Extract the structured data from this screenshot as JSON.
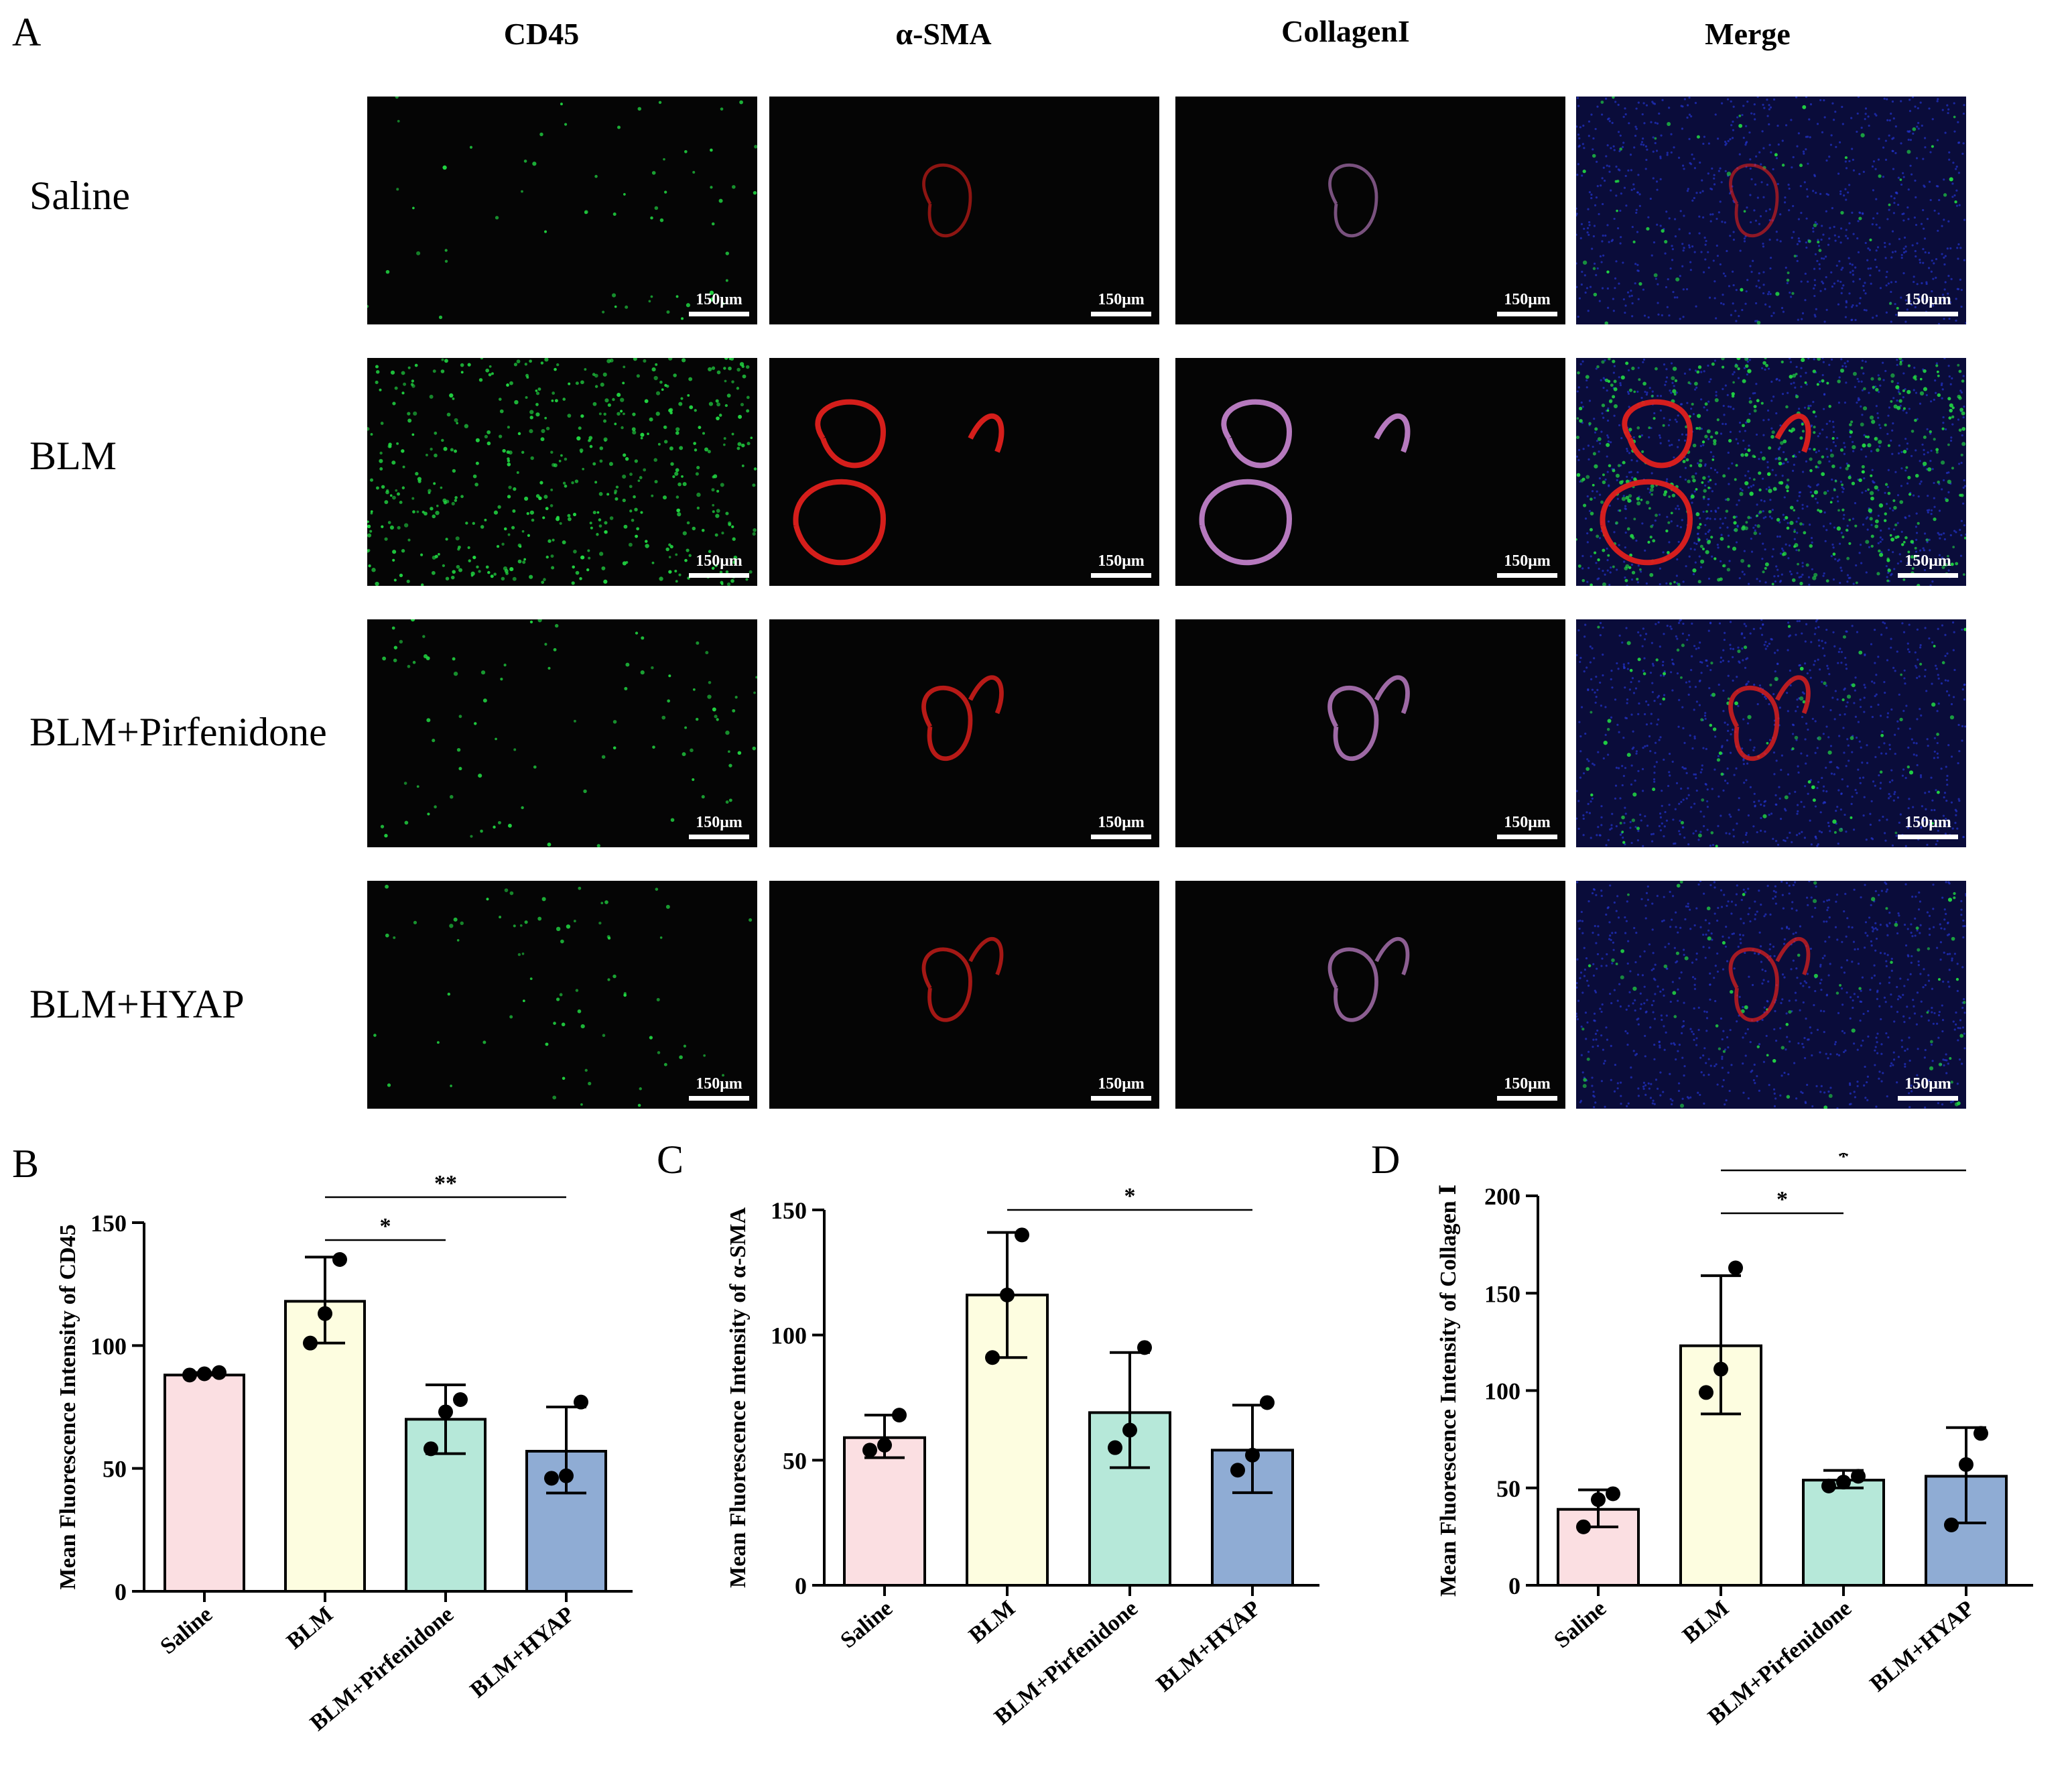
{
  "panel_a": {
    "letter": "A",
    "columns": [
      "CD45",
      "α-SMA",
      "CollagenI",
      "Merge"
    ],
    "rows": [
      "Saline",
      "BLM",
      "BLM+Pirfenidone",
      "BLM+HYAP"
    ],
    "scale_bar_label": "150μm"
  },
  "chart_data": [
    {
      "letter": "B",
      "type": "bar",
      "ylabel": "Mean Fluorescence Intensity of CD45",
      "categories": [
        "Saline",
        "BLM",
        "BLM+Pirfenidone",
        "BLM+HYAP"
      ],
      "values": [
        88,
        118,
        70,
        57
      ],
      "error": [
        [
          88,
          89
        ],
        [
          101,
          136
        ],
        [
          56,
          84
        ],
        [
          40,
          75
        ]
      ],
      "points": [
        [
          88,
          88.5,
          89
        ],
        [
          101,
          113,
          135
        ],
        [
          58,
          73,
          78
        ],
        [
          46,
          47,
          77
        ]
      ],
      "ylim": [
        0,
        150
      ],
      "yticks": [
        0,
        50,
        100,
        150
      ],
      "colors": [
        "#fbdfe2",
        "#fdfde0",
        "#b6e8d9",
        "#8facd4"
      ],
      "significance": [
        {
          "from": "BLM",
          "to": "BLM+Pirfenidone",
          "label": "*"
        },
        {
          "from": "BLM",
          "to": "BLM+HYAP",
          "label": "**"
        }
      ]
    },
    {
      "letter": "C",
      "type": "bar",
      "ylabel": "Mean Fluorescence Intensity of α-SMA",
      "categories": [
        "Saline",
        "BLM",
        "BLM+Pirfenidone",
        "BLM+HYAP"
      ],
      "values": [
        59,
        116,
        69,
        54
      ],
      "error": [
        [
          51,
          68
        ],
        [
          91,
          141
        ],
        [
          47,
          93
        ],
        [
          37,
          72
        ]
      ],
      "points": [
        [
          54,
          56,
          68
        ],
        [
          91,
          116,
          140
        ],
        [
          55,
          62,
          95
        ],
        [
          46,
          52,
          73
        ]
      ],
      "ylim": [
        0,
        150
      ],
      "yticks": [
        0,
        50,
        100,
        150
      ],
      "colors": [
        "#fbdfe2",
        "#fdfde0",
        "#b6e8d9",
        "#8facd4"
      ],
      "significance": [
        {
          "from": "BLM",
          "to": "BLM+HYAP",
          "label": "*"
        }
      ]
    },
    {
      "letter": "D",
      "type": "bar",
      "ylabel": "Mean Fluorescence Intensity of Collagen Ⅰ",
      "categories": [
        "Saline",
        "BLM",
        "BLM+Pirfenidone",
        "BLM+HYAP"
      ],
      "values": [
        39,
        123,
        54,
        56
      ],
      "error": [
        [
          30,
          49
        ],
        [
          88,
          159
        ],
        [
          50,
          59
        ],
        [
          32,
          81
        ]
      ],
      "points": [
        [
          30,
          44,
          47
        ],
        [
          99,
          111,
          163
        ],
        [
          51,
          53,
          56
        ],
        [
          31,
          62,
          78
        ]
      ],
      "ylim": [
        0,
        200
      ],
      "yticks": [
        0,
        50,
        100,
        150,
        200
      ],
      "colors": [
        "#fbdfe2",
        "#fdfde0",
        "#b6e8d9",
        "#8facd4"
      ],
      "significance": [
        {
          "from": "BLM",
          "to": "BLM+Pirfenidone",
          "label": "*"
        },
        {
          "from": "BLM",
          "to": "BLM+HYAP",
          "label": "*"
        }
      ]
    }
  ]
}
